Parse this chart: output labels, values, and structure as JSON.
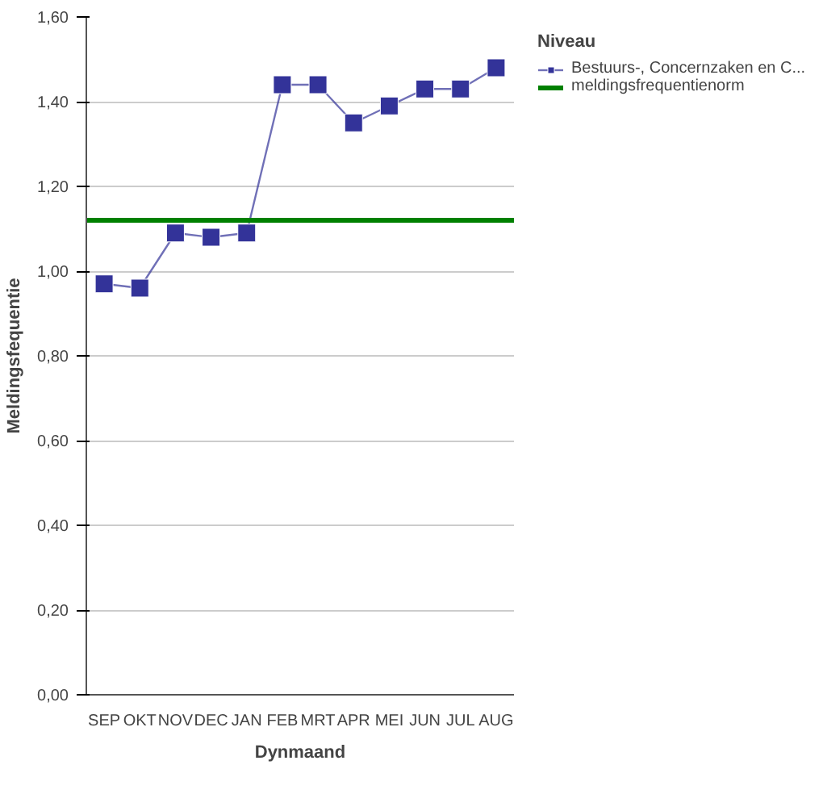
{
  "chart_data": {
    "type": "line",
    "xlabel": "Dynmaand",
    "ylabel": "Meldingsfequentie",
    "legend_title": "Niveau",
    "categories": [
      "SEP",
      "OKT",
      "NOV",
      "DEC",
      "JAN",
      "FEB",
      "MRT",
      "APR",
      "MEI",
      "JUN",
      "JUL",
      "AUG"
    ],
    "series": [
      {
        "name": "Bestuurs-, Concernzaken en C...",
        "color": "#333399",
        "values": [
          0.97,
          0.96,
          1.09,
          1.08,
          1.09,
          1.44,
          1.44,
          1.35,
          1.39,
          1.43,
          1.43,
          1.48
        ]
      }
    ],
    "ref_lines": [
      {
        "axis": "y",
        "value": 1.12,
        "label": "meldingsfrequentienorm",
        "color": "#008000"
      }
    ],
    "ylim": [
      0,
      1.6
    ],
    "yticks": [
      {
        "value": 0,
        "label": "0,00"
      },
      {
        "value": 0.2,
        "label": "0,20"
      },
      {
        "value": 0.4,
        "label": "0,40"
      },
      {
        "value": 0.6,
        "label": "0,60"
      },
      {
        "value": 0.8,
        "label": "0,80"
      },
      {
        "value": 1.0,
        "label": "1,00"
      },
      {
        "value": 1.2,
        "label": "1,20"
      },
      {
        "value": 1.4,
        "label": "1,40"
      },
      {
        "value": 1.6,
        "label": "1,60"
      }
    ],
    "grid": "y",
    "legend": "top right",
    "marker": "square",
    "line_style": "solid"
  }
}
